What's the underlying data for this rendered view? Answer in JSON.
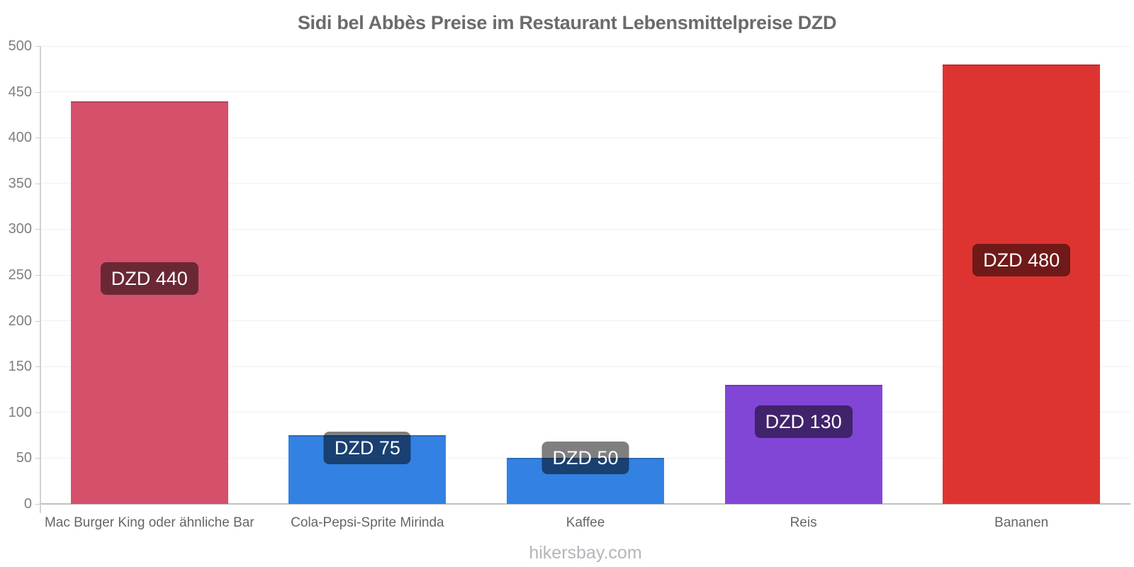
{
  "page": {
    "footer": "hikersbay.com"
  },
  "chart_data": {
    "type": "bar",
    "title": "Sidi bel Abbès Preise im Restaurant Lebensmittelpreise DZD",
    "currency": "DZD",
    "categories": [
      "Mac Burger King oder ähnliche Bar",
      "Cola-Pepsi-Sprite Mirinda",
      "Kaffee",
      "Reis",
      "Bananen"
    ],
    "values": [
      440,
      75,
      50,
      130,
      480
    ],
    "value_labels": [
      "DZD 440",
      "DZD 75",
      "DZD 50",
      "DZD 130",
      "DZD 480"
    ],
    "bar_colors": [
      "#d4506b",
      "#3381e3",
      "#3381e3",
      "#8246d6",
      "#de3431"
    ],
    "ylim": [
      0,
      500
    ],
    "ytick_step": 50,
    "ytick_labels": [
      "0",
      "50",
      "100",
      "150",
      "200",
      "250",
      "300",
      "350",
      "400",
      "450",
      "500"
    ],
    "xlabel": "",
    "ylabel": "",
    "grid": "horizontal",
    "legend": "none",
    "label_box_color": "rgba(0,0,0,0.5)",
    "label_text_color": "#ffffff",
    "label_centers_value": [
      246,
      61,
      50,
      90,
      266
    ],
    "axis_color": "#c0c0c0",
    "gridline_color": "#f0f0f0",
    "text_colors": {
      "title": "#6b6b6b",
      "y_labels": "#7f7f7f",
      "category_labels": "#666666",
      "footer": "#b3b6ba"
    }
  }
}
